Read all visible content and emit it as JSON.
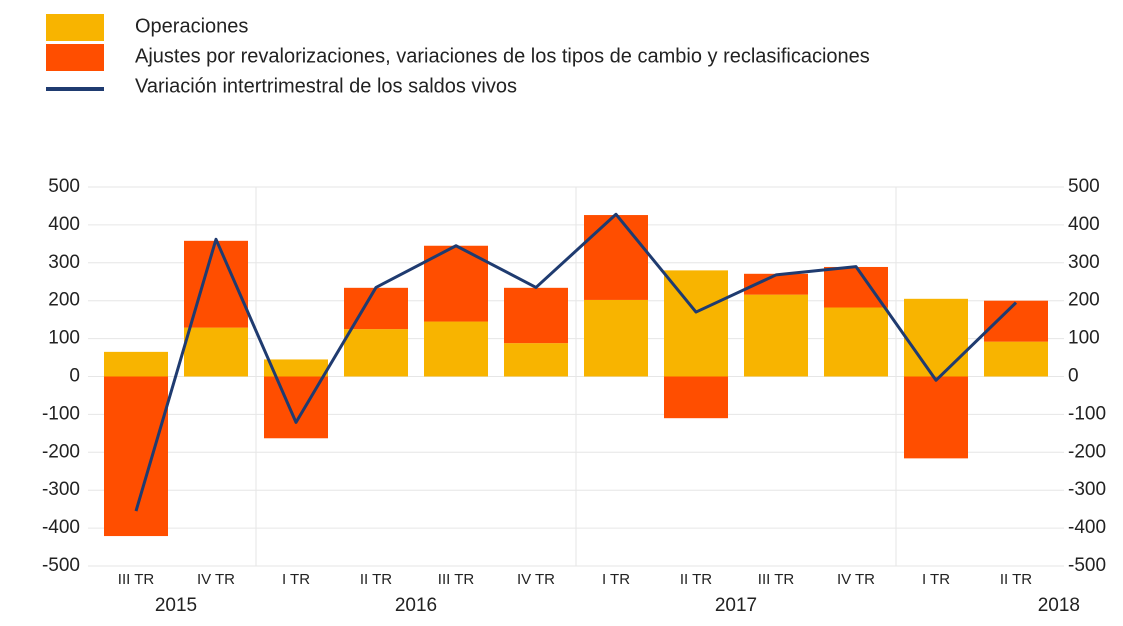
{
  "chart_data": {
    "type": "bar",
    "categories": [
      "III TR",
      "IV TR",
      "I TR",
      "II TR",
      "III TR",
      "IV TR",
      "I TR",
      "II TR",
      "III TR",
      "IV TR",
      "I TR",
      "II TR"
    ],
    "x_groups": [
      {
        "label": "2015",
        "span": 2
      },
      {
        "label": "2016",
        "span": 4
      },
      {
        "label": "2017",
        "span": 4
      },
      {
        "label": "2018",
        "span": 2
      }
    ],
    "series": [
      {
        "name": "Operaciones",
        "type": "bar",
        "color": "#f8b400",
        "values": [
          65,
          129,
          45,
          125,
          145,
          88,
          202,
          280,
          216,
          182,
          205,
          92
        ]
      },
      {
        "name": "Ajustes por revalorizaciones, variaciones de los tipos de cambio y reclasificaciones",
        "type": "bar",
        "color": "#ff4e00",
        "values": [
          -421,
          229,
          -163,
          109,
          200,
          146,
          224,
          -110,
          55,
          107,
          -216,
          108
        ]
      },
      {
        "name": "Variación intertrimestral de los saldos vivos",
        "type": "line",
        "color": "#1f3b70",
        "values": [
          -355,
          362,
          -121,
          235,
          345,
          235,
          428,
          170,
          268,
          290,
          -10,
          195
        ]
      }
    ],
    "ylim": [
      -500,
      500
    ],
    "yticks": [
      -500,
      -400,
      -300,
      -200,
      -100,
      0,
      100,
      200,
      300,
      400,
      500
    ],
    "y2lim": [
      -500,
      500
    ],
    "y2ticks": [
      -500,
      -400,
      -300,
      -200,
      -100,
      0,
      100,
      200,
      300,
      400,
      500
    ],
    "grid": true,
    "legend": "top-left"
  }
}
